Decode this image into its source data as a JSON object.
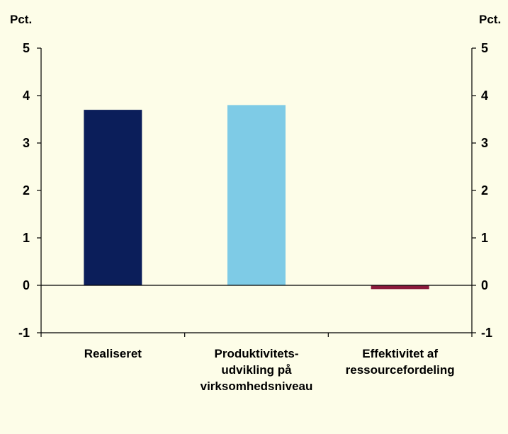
{
  "chart_data": {
    "type": "bar",
    "categories": [
      [
        "Realiseret"
      ],
      [
        "Produktivitets-",
        "udvikling på",
        "virksomhedsniveau"
      ],
      [
        "Effektivitet af",
        "ressourcefordeling"
      ]
    ],
    "values": [
      3.7,
      3.8,
      -0.08
    ],
    "colors": [
      "#0b1e5a",
      "#7ecbe6",
      "#8b1a3c"
    ],
    "y_unit_left": "Pct.",
    "y_unit_right": "Pct.",
    "ylim": [
      -1,
      5
    ],
    "yticks": [
      5,
      4,
      3,
      2,
      1,
      0,
      -1
    ],
    "grid": false,
    "legend": "none"
  }
}
